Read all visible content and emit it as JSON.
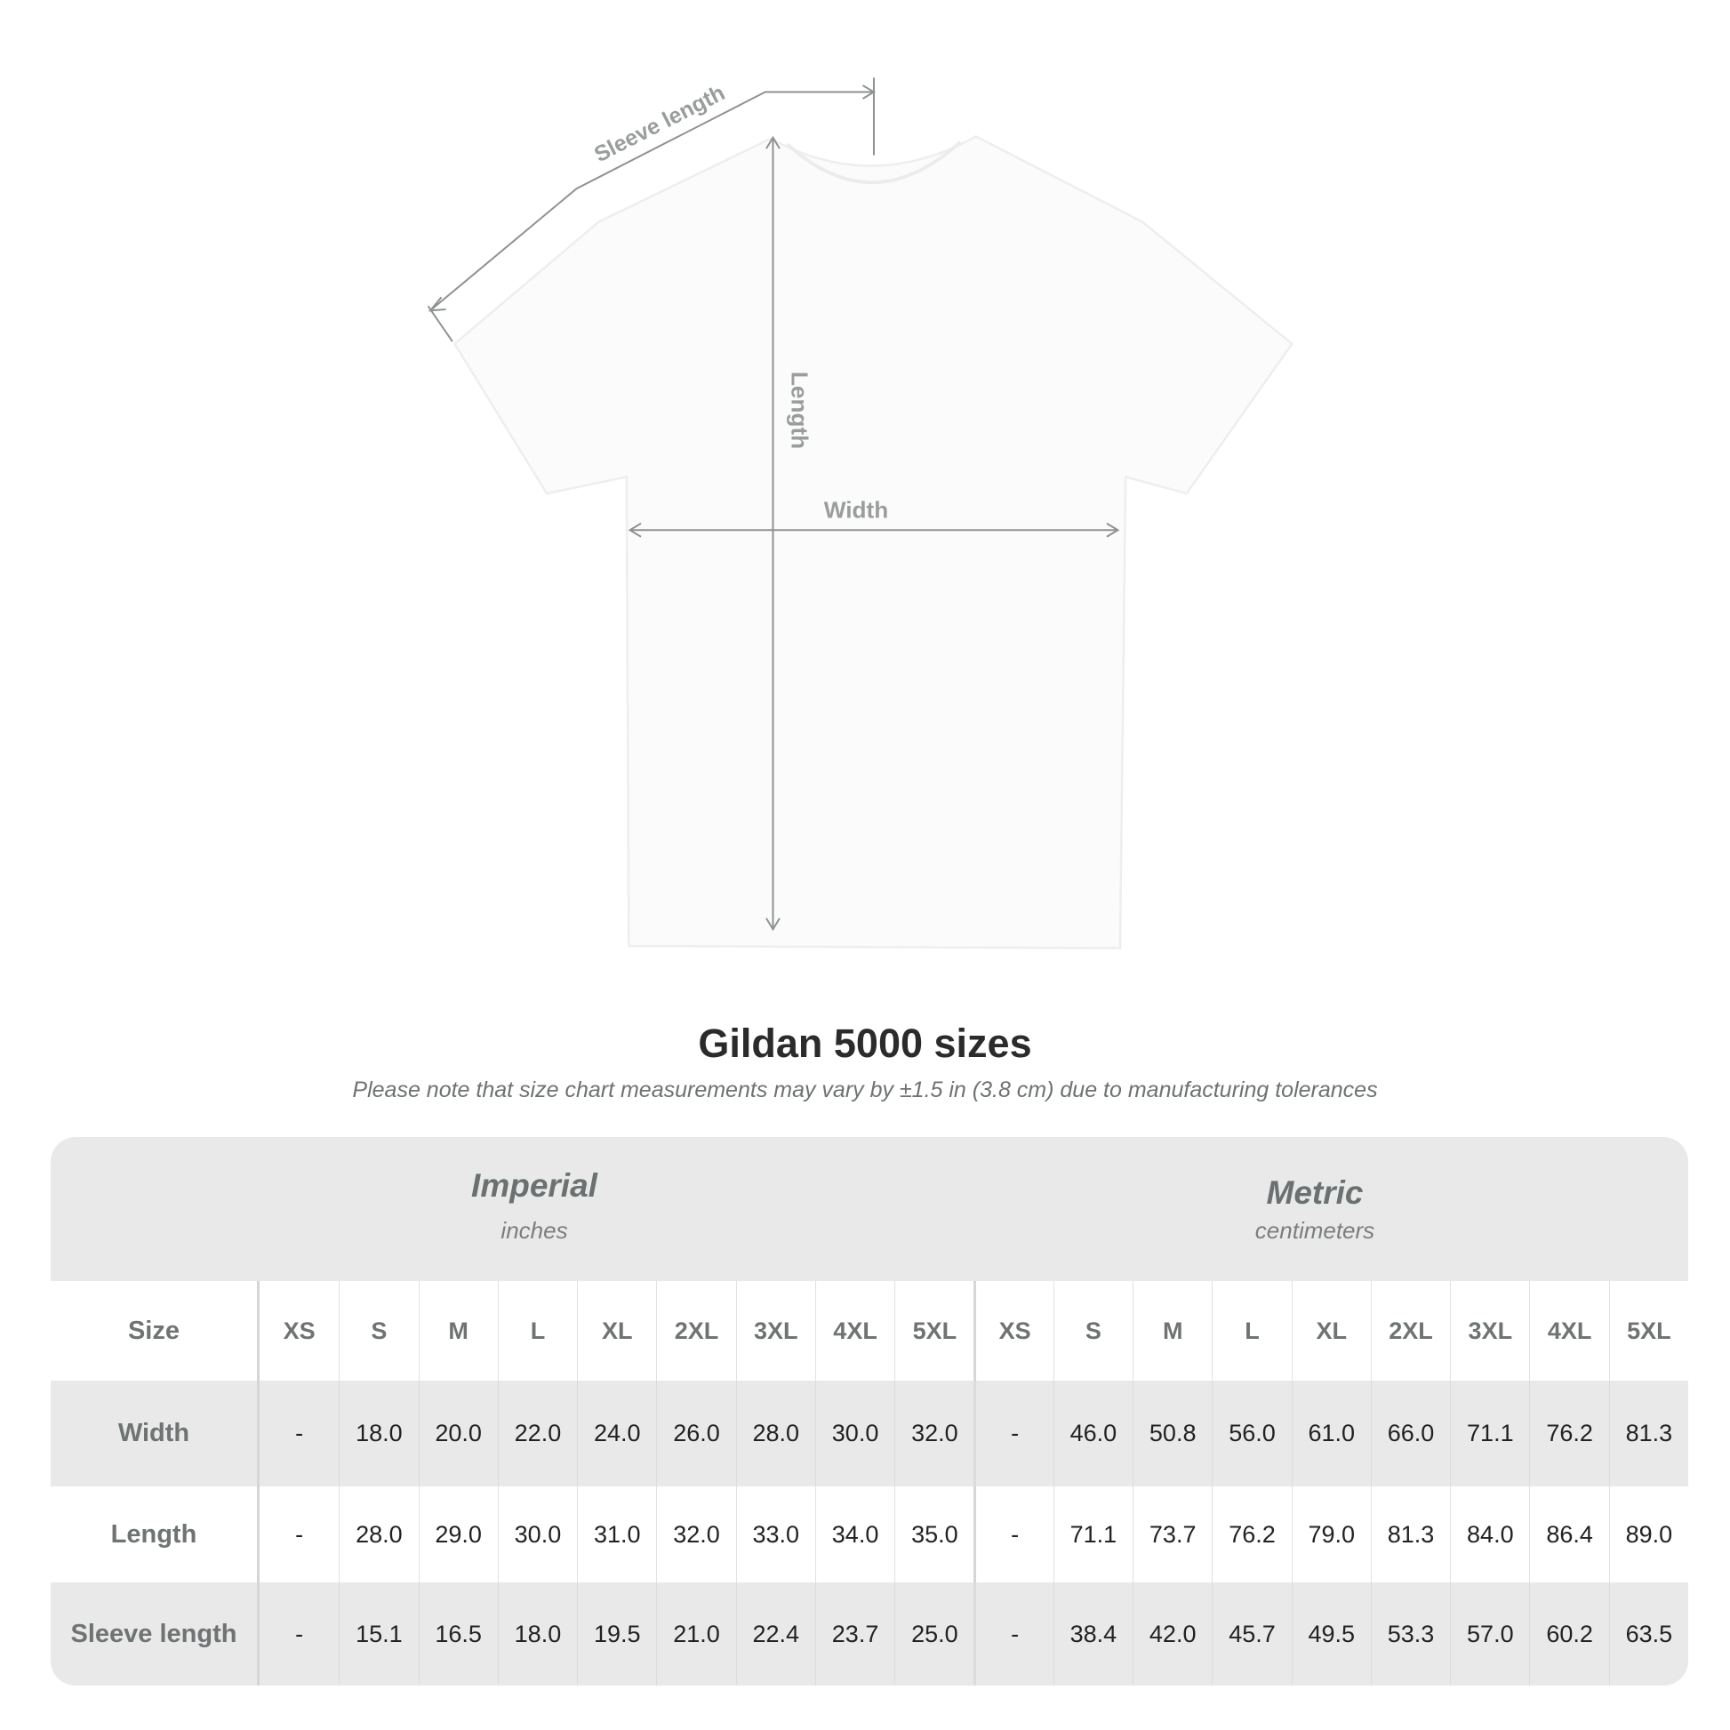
{
  "diagram": {
    "sleeve_label": "Sleeve length",
    "length_label": "Length",
    "width_label": "Width"
  },
  "title": "Gildan 5000 sizes",
  "subtitle": "Please note that size chart measurements may vary by ±1.5 in (3.8 cm) due to manufacturing tolerances",
  "table": {
    "imperial": {
      "name": "Imperial",
      "unit": "inches"
    },
    "metric": {
      "name": "Metric",
      "unit": "centimeters"
    },
    "size_label": "Size",
    "sizes": [
      "XS",
      "S",
      "M",
      "L",
      "XL",
      "2XL",
      "3XL",
      "4XL",
      "5XL"
    ],
    "rows": [
      {
        "label": "Width",
        "imperial": [
          "-",
          "18.0",
          "20.0",
          "22.0",
          "24.0",
          "26.0",
          "28.0",
          "30.0",
          "32.0"
        ],
        "metric": [
          "-",
          "46.0",
          "50.8",
          "56.0",
          "61.0",
          "66.0",
          "71.1",
          "76.2",
          "81.3"
        ]
      },
      {
        "label": "Length",
        "imperial": [
          "-",
          "28.0",
          "29.0",
          "30.0",
          "31.0",
          "32.0",
          "33.0",
          "34.0",
          "35.0"
        ],
        "metric": [
          "-",
          "71.1",
          "73.7",
          "76.2",
          "79.0",
          "81.3",
          "84.0",
          "86.4",
          "89.0"
        ]
      },
      {
        "label": "Sleeve length",
        "imperial": [
          "-",
          "15.1",
          "16.5",
          "18.0",
          "19.5",
          "21.0",
          "22.4",
          "23.7",
          "25.0"
        ],
        "metric": [
          "-",
          "38.4",
          "42.0",
          "45.7",
          "49.5",
          "53.3",
          "57.0",
          "60.2",
          "63.5"
        ]
      }
    ]
  },
  "colors": {
    "table_bg": "#e9e9e9",
    "header_text": "#6b7070",
    "arrow": "#8f9292"
  }
}
